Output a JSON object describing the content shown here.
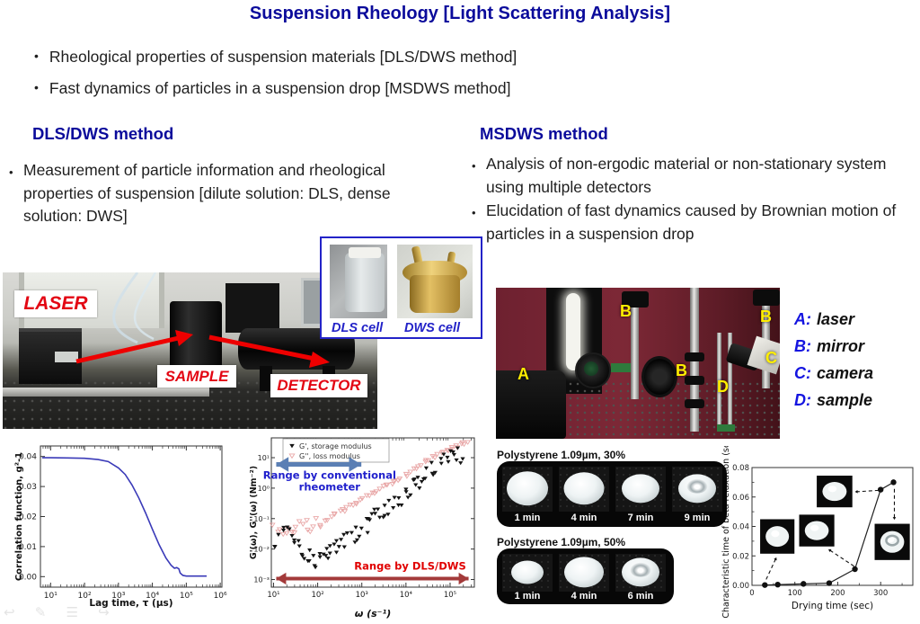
{
  "slide": {
    "title": "Suspension Rheology [Light Scattering Analysis]",
    "top_bullets": [
      "Rheological properties of suspension materials [DLS/DWS method]",
      "Fast dynamics of particles in a suspension drop [MSDWS method]"
    ]
  },
  "dls_section": {
    "header": "DLS/DWS method",
    "bullet": "Measurement of particle information and rheological properties of suspension [dilute solution: DLS, dense solution: DWS]"
  },
  "msdws_section": {
    "header": "MSDWS method",
    "bullets": [
      "Analysis of non-ergodic material or non-stationary system using multiple detectors",
      "Elucidation of fast dynamics caused by Brownian motion of particles in a suspension drop"
    ]
  },
  "left_photo": {
    "laser_label": "LASER",
    "sample_label": "SAMPLE",
    "detector_label": "DETECTOR",
    "arrow_color": "#ee0000"
  },
  "inset": {
    "dls_label": "DLS cell",
    "dws_label": "DWS cell",
    "border_color": "#2323c8"
  },
  "right_photo": {
    "markers": {
      "a": "A",
      "b1": "B",
      "b2": "B",
      "b3": "B",
      "c": "C",
      "d": "D"
    },
    "marker_color": "#ffee00",
    "legend": [
      {
        "key": "A:",
        "value": "laser"
      },
      {
        "key": "B:",
        "value": "mirror"
      },
      {
        "key": "C:",
        "value": "camera"
      },
      {
        "key": "D:",
        "value": "sample"
      }
    ]
  },
  "strips": [
    {
      "title": "Polystyrene 1.09µm, 30%",
      "times": [
        "1 min",
        "4 min",
        "7 min",
        "9 min"
      ]
    },
    {
      "title": "Polystyrene 1.09µm, 50%",
      "times": [
        "1 min",
        "4 min",
        "6 min"
      ]
    }
  ],
  "corner_icons": [
    {
      "name": "undo-arrow-icon",
      "glyph": "↩"
    },
    {
      "name": "pencil-icon",
      "glyph": "✎"
    },
    {
      "name": "list-icon",
      "glyph": "☰"
    },
    {
      "name": "redo-arrow-icon",
      "glyph": "↪"
    }
  ],
  "chart_data": [
    {
      "type": "line",
      "title": "",
      "xlabel": "Lag time, τ (µs)",
      "ylabel": "Correlation function, g²-1",
      "xscale": "log",
      "xlim_log": [
        0.7,
        6.05
      ],
      "ylim": [
        -0.0035,
        0.0435
      ],
      "line_color": "#3a3ab8",
      "xticks": [
        {
          "log": 1,
          "label": "10¹"
        },
        {
          "log": 2,
          "label": "10²"
        },
        {
          "log": 3,
          "label": "10³"
        },
        {
          "log": 4,
          "label": "10⁴"
        },
        {
          "log": 5,
          "label": "10⁵"
        },
        {
          "log": 6,
          "label": "10⁶"
        }
      ],
      "yticks": [
        {
          "v": 0.0,
          "label": "0.00"
        },
        {
          "v": 0.01,
          "label": "0.01"
        },
        {
          "v": 0.02,
          "label": "0.02"
        },
        {
          "v": 0.03,
          "label": "0.03"
        },
        {
          "v": 0.04,
          "label": "0.04"
        }
      ],
      "points_logx_y": [
        [
          0.75,
          0.0396
        ],
        [
          1.0,
          0.0396
        ],
        [
          1.5,
          0.0395
        ],
        [
          2.0,
          0.0394
        ],
        [
          2.4,
          0.039
        ],
        [
          2.7,
          0.0383
        ],
        [
          3.0,
          0.0362
        ],
        [
          3.2,
          0.034
        ],
        [
          3.4,
          0.0305
        ],
        [
          3.6,
          0.0262
        ],
        [
          3.8,
          0.0212
        ],
        [
          4.0,
          0.0158
        ],
        [
          4.2,
          0.0106
        ],
        [
          4.4,
          0.0062
        ],
        [
          4.55,
          0.0038
        ],
        [
          4.65,
          0.0028
        ],
        [
          4.72,
          0.003
        ],
        [
          4.78,
          0.0026
        ],
        [
          4.82,
          0.0012
        ],
        [
          4.9,
          0.0004
        ],
        [
          5.0,
          0.0002
        ],
        [
          5.6,
          0.0002
        ]
      ]
    },
    {
      "type": "scatter",
      "xlabel": "ω (s⁻¹)",
      "ylabel": "G'(ω), G''(ω) (Nm⁻²)",
      "xscale": "log",
      "yscale": "log",
      "xlim_log": [
        0.95,
        5.55
      ],
      "ylim_log": [
        -3.25,
        1.65
      ],
      "xticks": [
        {
          "log": 1,
          "label": "10¹"
        },
        {
          "log": 2,
          "label": "10²"
        },
        {
          "log": 3,
          "label": "10³"
        },
        {
          "log": 4,
          "label": "10⁴"
        },
        {
          "log": 5,
          "label": "10⁵"
        }
      ],
      "yticks": [
        {
          "log": 1,
          "label": "10¹"
        },
        {
          "log": 0,
          "label": "10⁰"
        },
        {
          "log": -1,
          "label": "10⁻¹"
        },
        {
          "log": -2,
          "label": "10⁻²"
        },
        {
          "log": -3,
          "label": "10⁻³"
        }
      ],
      "series": [
        {
          "name": "G'', loss modulus",
          "marker": "open-triangle-down",
          "color": "#e9a8a8",
          "seed": 7,
          "points_per_seg": 8,
          "jitter": 0.06,
          "jitter_low": 0.22,
          "jitter_split": 2.1,
          "trend_log": [
            [
              1.0,
              -1.42
            ],
            [
              1.5,
              -1.3
            ],
            [
              2.0,
              -1.18
            ],
            [
              2.5,
              -0.78
            ],
            [
              3.0,
              -0.38
            ],
            [
              3.5,
              0.02
            ],
            [
              4.0,
              0.45
            ],
            [
              4.5,
              0.9
            ],
            [
              5.0,
              1.28
            ],
            [
              5.4,
              1.5
            ]
          ]
        },
        {
          "name": "G', storage modulus",
          "marker": "filled-triangle-down",
          "color": "#141414",
          "seed": 13,
          "points_per_seg": 7,
          "jitter": 0.27,
          "jitter_low": 0.3,
          "jitter_split": 1.8,
          "trend_log": [
            [
              1.0,
              -1.7
            ],
            [
              1.4,
              -1.25
            ],
            [
              1.7,
              -2.1
            ],
            [
              2.0,
              -2.45
            ],
            [
              2.3,
              -2.05
            ],
            [
              2.6,
              -1.75
            ],
            [
              3.0,
              -1.35
            ],
            [
              3.3,
              -0.95
            ],
            [
              3.6,
              -0.65
            ],
            [
              4.0,
              -0.25
            ],
            [
              4.3,
              0.25
            ],
            [
              4.6,
              0.65
            ],
            [
              5.0,
              1.0
            ],
            [
              5.3,
              1.1
            ]
          ]
        }
      ],
      "annotations": [
        {
          "text_lines": [
            "Range by conventional",
            "rheometer"
          ],
          "text_color": "#2020cc",
          "arrow_color": "#5b7fb4",
          "arrow_xlog": [
            1.0,
            3.05
          ],
          "arrow_ylog": 0.78
        },
        {
          "text_lines": [
            "Range by DLS/DWS"
          ],
          "text_color": "#e00000",
          "arrow_color": "#a33a3a",
          "arrow_xlog": [
            1.0,
            5.48
          ],
          "arrow_ylog": -2.97
        }
      ]
    },
    {
      "type": "scatter-line",
      "xlabel": "Drying time (sec)",
      "ylabel": "Characteristic time of beta relaxation (sec)",
      "xlim": [
        0,
        375
      ],
      "ylim": [
        0,
        0.08
      ],
      "xticks": [
        0,
        100,
        200,
        300
      ],
      "yticks": [
        {
          "v": 0.0,
          "label": "0.00"
        },
        {
          "v": 0.02,
          "label": "0.02"
        },
        {
          "v": 0.04,
          "label": "0.04"
        },
        {
          "v": 0.06,
          "label": "0.06"
        },
        {
          "v": 0.08,
          "label": "0.08"
        }
      ],
      "x": [
        30,
        60,
        120,
        180,
        240,
        300,
        330
      ],
      "y": [
        0.0002,
        0.0005,
        0.001,
        0.0015,
        0.011,
        0.065,
        0.07
      ],
      "insets": [
        {
          "x": [
            19,
            99
          ],
          "y": [
            0.0215,
            0.0449
          ],
          "dimple": false,
          "arrow": {
            "from": [
              33,
              0.004
            ],
            "to": [
              57,
              0.019
            ]
          }
        },
        {
          "x": [
            110,
            192
          ],
          "y": [
            0.0264,
            0.048
          ],
          "dimple": false,
          "arrow": {
            "from": [
              238,
              0.013
            ],
            "to": [
              178,
              0.0245
            ]
          }
        },
        {
          "x": [
            151,
            234
          ],
          "y": [
            0.053,
            0.0745
          ],
          "dimple": false,
          "arrow": {
            "from": [
              295,
              0.0645
            ],
            "to": [
              240,
              0.0635
            ]
          }
        },
        {
          "x": [
            286,
            368
          ],
          "y": [
            0.0172,
            0.0418
          ],
          "dimple": true,
          "arrow": {
            "from": [
              332,
              0.0655
            ],
            "to": [
              332,
              0.0445
            ]
          }
        }
      ]
    }
  ]
}
